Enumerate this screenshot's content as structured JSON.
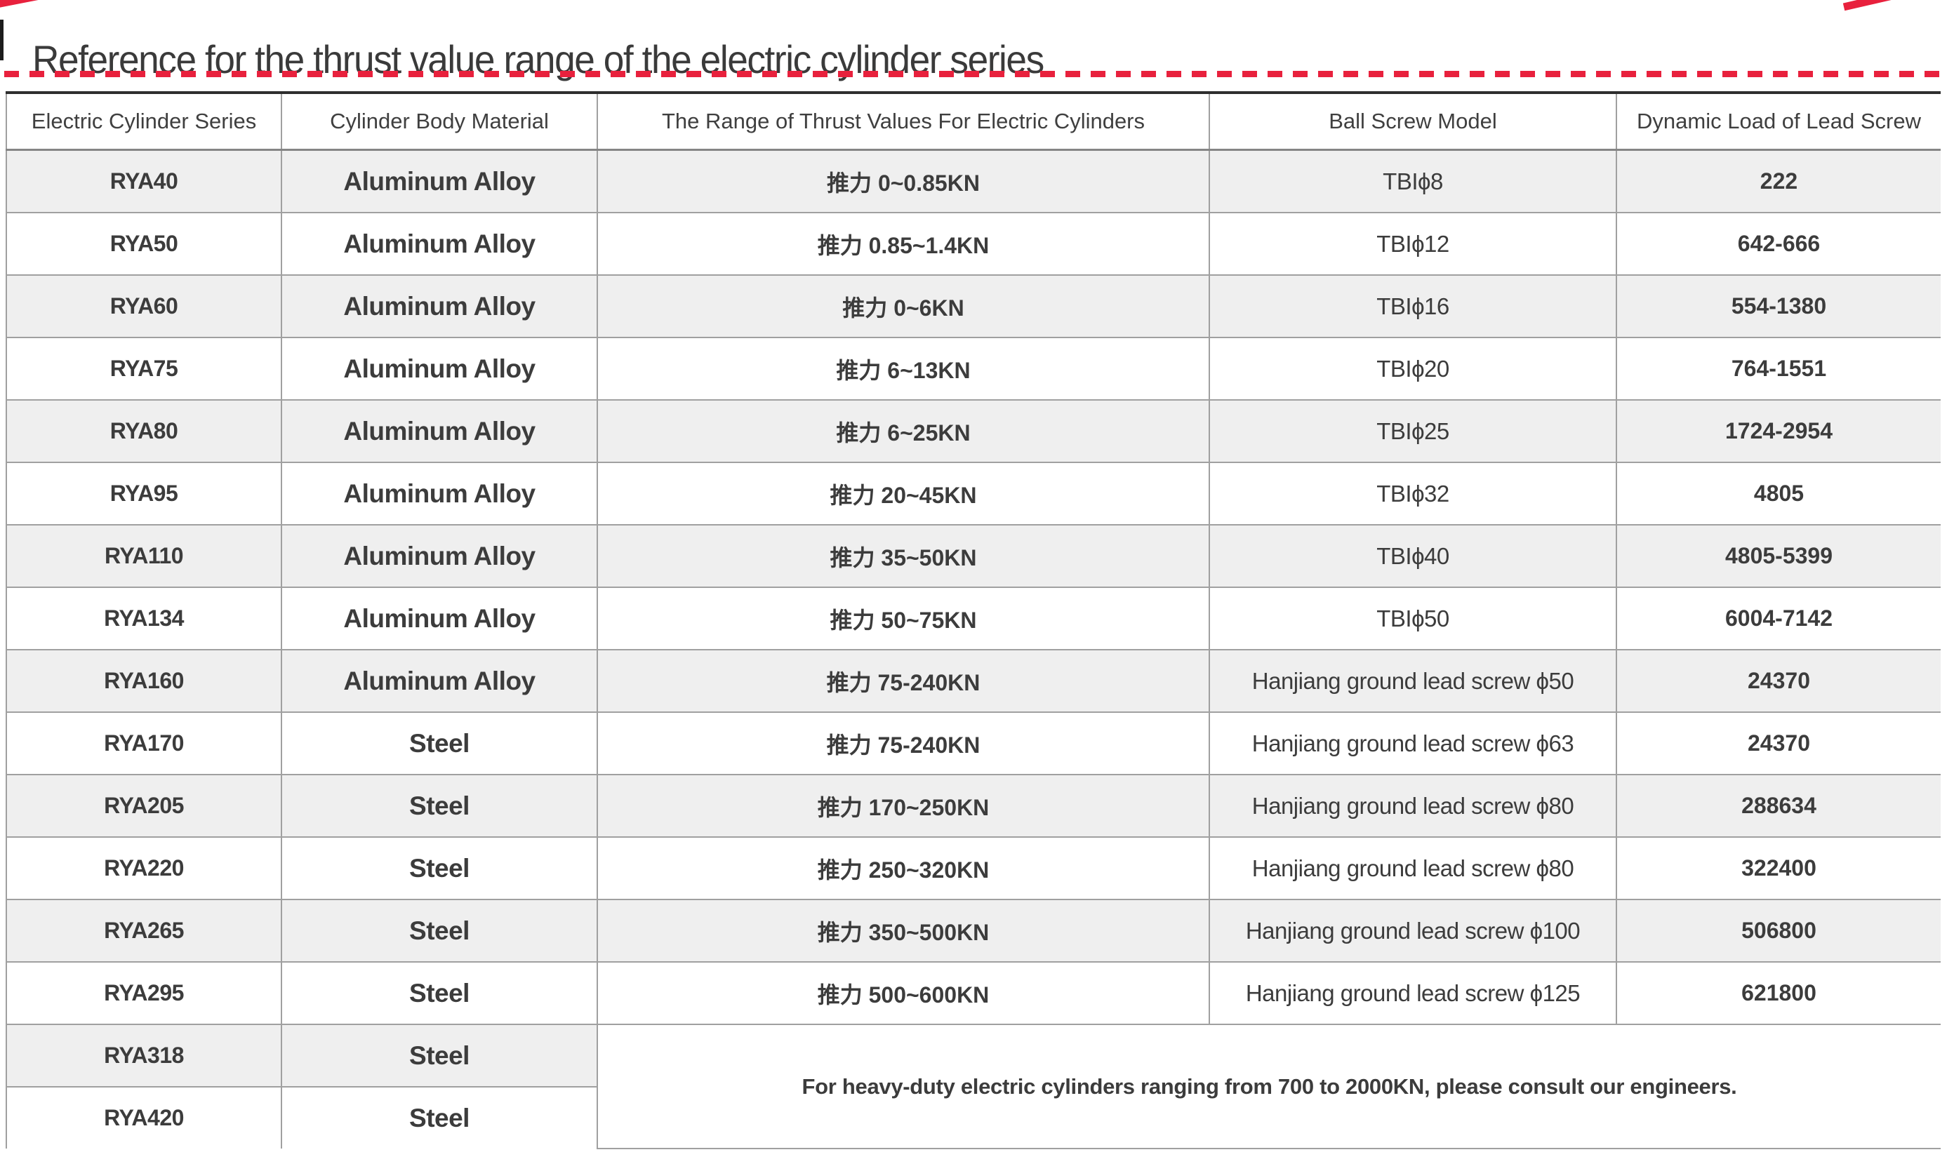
{
  "page": {
    "title": "Reference for the thrust value range of the electric cylinder series"
  },
  "colors": {
    "accent_red": "#e8213d",
    "row_stripe_gray": "#efefef",
    "text_dark": "#3c3c3c",
    "border_gray": "#a0a0a0",
    "border_dark": "#2e2e2e"
  },
  "table": {
    "headers": [
      "Electric Cylinder Series",
      "Cylinder Body Material",
      "The Range of Thrust Values For Electric Cylinders",
      "Ball Screw Model",
      "Dynamic Load of Lead Screw"
    ],
    "rows": [
      {
        "series": "RYA40",
        "material": "Aluminum Alloy",
        "thrust": "推力 0~0.85KN",
        "screw": "TBIϕ8",
        "load": "222"
      },
      {
        "series": "RYA50",
        "material": "Aluminum Alloy",
        "thrust": "推力 0.85~1.4KN",
        "screw": "TBIϕ12",
        "load": "642-666"
      },
      {
        "series": "RYA60",
        "material": "Aluminum Alloy",
        "thrust": "推力 0~6KN",
        "screw": "TBIϕ16",
        "load": "554-1380"
      },
      {
        "series": "RYA75",
        "material": "Aluminum Alloy",
        "thrust": "推力 6~13KN",
        "screw": "TBIϕ20",
        "load": "764-1551"
      },
      {
        "series": "RYA80",
        "material": "Aluminum Alloy",
        "thrust": "推力 6~25KN",
        "screw": "TBIϕ25",
        "load": "1724-2954"
      },
      {
        "series": "RYA95",
        "material": "Aluminum Alloy",
        "thrust": "推力 20~45KN",
        "screw": "TBIϕ32",
        "load": "4805"
      },
      {
        "series": "RYA110",
        "material": "Aluminum Alloy",
        "thrust": "推力 35~50KN",
        "screw": "TBIϕ40",
        "load": "4805-5399"
      },
      {
        "series": "RYA134",
        "material": "Aluminum Alloy",
        "thrust": "推力 50~75KN",
        "screw": "TBIϕ50",
        "load": "6004-7142"
      },
      {
        "series": "RYA160",
        "material": "Aluminum Alloy",
        "thrust": "推力 75-240KN",
        "screw": "Hanjiang ground lead screw ϕ50",
        "load": "24370"
      },
      {
        "series": "RYA170",
        "material": "Steel",
        "thrust": "推力 75-240KN",
        "screw": "Hanjiang ground lead screw ϕ63",
        "load": "24370"
      },
      {
        "series": "RYA205",
        "material": "Steel",
        "thrust": "推力 170~250KN",
        "screw": "Hanjiang ground lead screw ϕ80",
        "load": "288634"
      },
      {
        "series": "RYA220",
        "material": "Steel",
        "thrust": "推力 250~320KN",
        "screw": "Hanjiang ground lead screw ϕ80",
        "load": "322400"
      },
      {
        "series": "RYA265",
        "material": "Steel",
        "thrust": "推力 350~500KN",
        "screw": "Hanjiang ground lead screw ϕ100",
        "load": "506800"
      },
      {
        "series": "RYA295",
        "material": "Steel",
        "thrust": "推力 500~600KN",
        "screw": "Hanjiang ground lead screw ϕ125",
        "load": "621800"
      },
      {
        "series": "RYA318",
        "material": "Steel"
      },
      {
        "series": "RYA420",
        "material": "Steel"
      }
    ],
    "note": "For heavy-duty electric cylinders ranging from 700 to 2000KN, please consult our engineers."
  }
}
